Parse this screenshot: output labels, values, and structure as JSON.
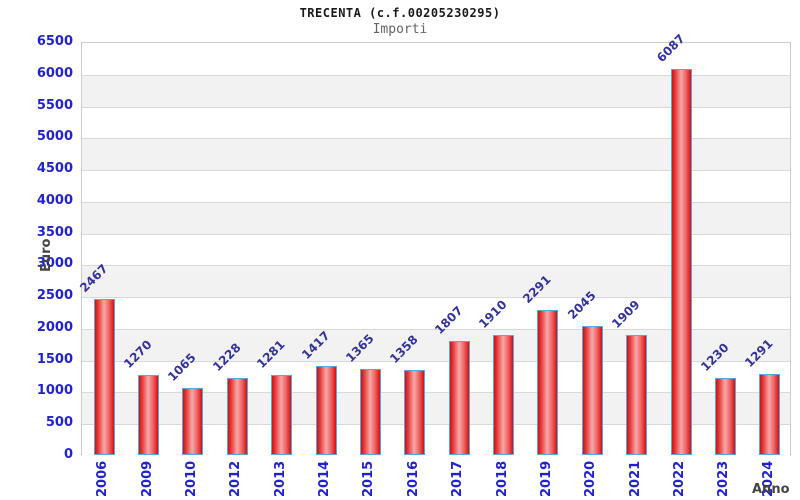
{
  "header": {
    "title": "TRECENTA (c.f.00205230295)",
    "subtitle": "Importi"
  },
  "chart_data": {
    "type": "bar",
    "title": "TRECENTA (c.f.00205230295)",
    "subtitle": "Importi",
    "categories": [
      "2006",
      "2009",
      "2010",
      "2012",
      "2013",
      "2014",
      "2015",
      "2016",
      "2017",
      "2018",
      "2019",
      "2020",
      "2021",
      "2022",
      "2023",
      "2024"
    ],
    "values": [
      2467,
      1270,
      1065,
      1228,
      1281,
      1417,
      1365,
      1358,
      1807,
      1910,
      2291,
      2045,
      1909,
      6087,
      1230,
      1291
    ],
    "xlabel": "Anno",
    "ylabel": "Euro",
    "ylim": [
      0,
      6500
    ],
    "ytick_step": 500,
    "yticks": [
      0,
      500,
      1000,
      1500,
      2000,
      2500,
      3000,
      3500,
      4000,
      4500,
      5000,
      5500,
      6000,
      6500
    ],
    "grid": true,
    "legend": false,
    "colors": {
      "bar_red_edge": "#d40f0f",
      "bar_red_center": "#f7a8a8",
      "bar_border_blue": "#55aadd",
      "tick_label_blue": "#2222cc",
      "value_label_navy": "#333399",
      "band_gray": "#f2f2f2",
      "band_white": "#ffffff",
      "grid_line": "#d9d9d9",
      "axis_line": "#999999",
      "title_black": "#1a1a1a",
      "subtitle_gray": "#666666",
      "axis_title_gray": "#444444"
    }
  }
}
